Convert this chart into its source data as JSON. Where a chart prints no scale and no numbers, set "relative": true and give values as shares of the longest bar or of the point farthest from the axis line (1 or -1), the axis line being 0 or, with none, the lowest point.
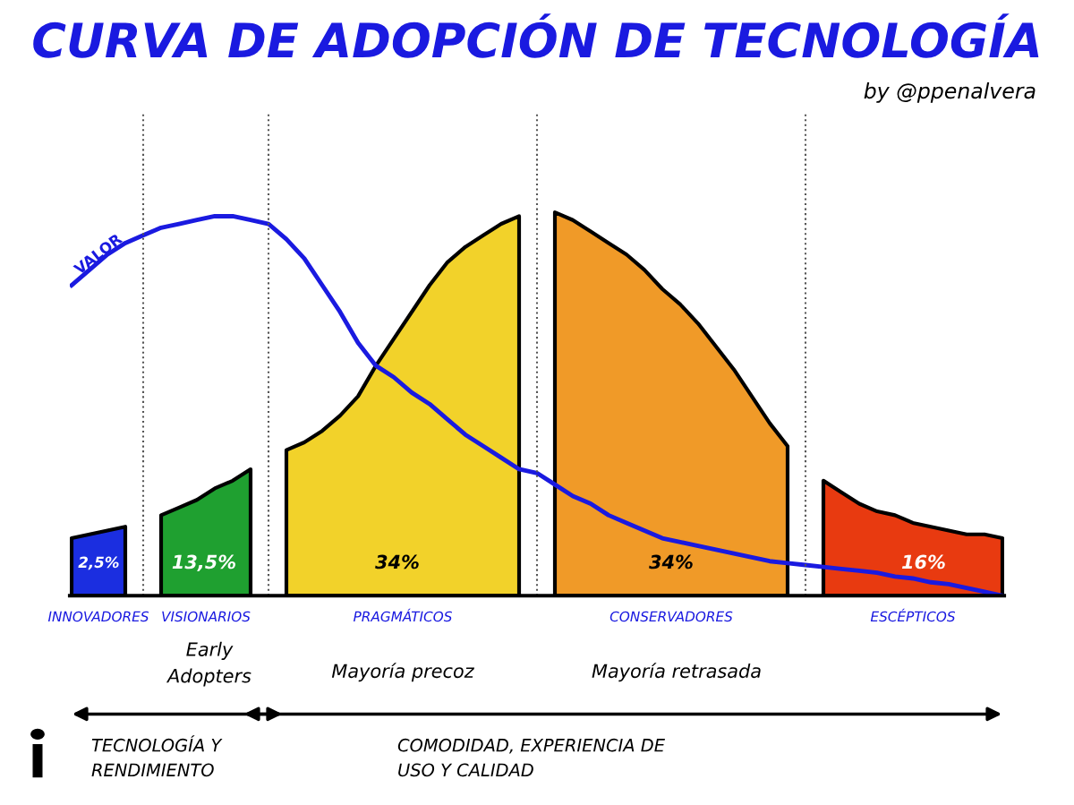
{
  "chart_data": {
    "type": "area",
    "title": "CURVA DE ADOPCIÓN DE TECNOLOGÍA",
    "subtitle": "by @ppenalvera",
    "relative": true,
    "grid": "x",
    "legend": false,
    "categories": [
      null,
      null,
      null,
      null,
      null,
      null,
      null,
      null,
      null,
      null,
      null,
      null,
      null,
      null,
      null,
      null,
      null,
      null,
      null,
      null,
      null,
      null,
      null,
      null,
      null,
      null,
      null,
      null,
      null,
      null,
      null,
      null,
      null,
      null,
      null,
      null,
      null,
      null,
      null,
      null,
      null,
      null,
      null,
      null,
      null,
      null,
      null,
      null,
      null,
      null,
      null,
      null,
      null
    ],
    "series": [
      {
        "name": "INNOVADORES",
        "color": "#1b2ee0",
        "values": [
          0.15,
          0.16,
          0.17,
          0.18,
          null,
          null,
          null,
          null,
          null,
          null,
          null,
          null,
          null,
          null,
          null,
          null,
          null,
          null,
          null,
          null,
          null,
          null,
          null,
          null,
          null,
          null,
          null,
          null,
          null,
          null,
          null,
          null,
          null,
          null,
          null,
          null,
          null,
          null,
          null,
          null,
          null,
          null,
          null,
          null,
          null,
          null,
          null,
          null,
          null,
          null,
          null,
          null,
          null
        ]
      },
      {
        "name": "VISIONARIOS",
        "color": "#1fa030",
        "values": [
          null,
          null,
          null,
          null,
          null,
          0.21,
          0.23,
          0.25,
          0.28,
          0.3,
          0.33,
          null,
          null,
          null,
          null,
          null,
          null,
          null,
          null,
          null,
          null,
          null,
          null,
          null,
          null,
          null,
          null,
          null,
          null,
          null,
          null,
          null,
          null,
          null,
          null,
          null,
          null,
          null,
          null,
          null,
          null,
          null,
          null,
          null,
          null,
          null,
          null,
          null,
          null,
          null,
          null,
          null,
          null
        ]
      },
      {
        "name": "PRAGMÁTICOS",
        "color": "#f2d22a",
        "values": [
          null,
          null,
          null,
          null,
          null,
          null,
          null,
          null,
          null,
          null,
          null,
          null,
          0.38,
          0.4,
          0.43,
          0.47,
          0.52,
          0.6,
          0.67,
          0.74,
          0.81,
          0.87,
          0.91,
          0.94,
          0.97,
          0.99,
          null,
          null,
          null,
          null,
          null,
          null,
          null,
          null,
          null,
          null,
          null,
          null,
          null,
          null,
          null,
          null,
          null,
          null,
          null,
          null,
          null,
          null,
          null,
          null,
          null,
          null,
          null
        ]
      },
      {
        "name": "CONSERVADORES",
        "color": "#f09a28",
        "values": [
          null,
          null,
          null,
          null,
          null,
          null,
          null,
          null,
          null,
          null,
          null,
          null,
          null,
          null,
          null,
          null,
          null,
          null,
          null,
          null,
          null,
          null,
          null,
          null,
          null,
          null,
          null,
          1.0,
          0.98,
          0.95,
          0.92,
          0.89,
          0.85,
          0.8,
          0.76,
          0.71,
          0.65,
          0.59,
          0.52,
          0.45,
          0.39,
          null,
          null,
          null,
          null,
          null,
          null,
          null,
          null,
          null,
          null,
          null,
          null
        ]
      },
      {
        "name": "ESCÉPTICOS",
        "color": "#e83a10",
        "values": [
          null,
          null,
          null,
          null,
          null,
          null,
          null,
          null,
          null,
          null,
          null,
          null,
          null,
          null,
          null,
          null,
          null,
          null,
          null,
          null,
          null,
          null,
          null,
          null,
          null,
          null,
          null,
          null,
          null,
          null,
          null,
          null,
          null,
          null,
          null,
          null,
          null,
          null,
          null,
          null,
          null,
          null,
          0.3,
          0.27,
          0.24,
          0.22,
          0.21,
          0.19,
          0.18,
          0.17,
          0.16,
          0.16,
          0.15
        ]
      },
      {
        "name": "VALOR",
        "type": "line",
        "color": "#1a1ae0",
        "values": [
          0.81,
          0.85,
          0.89,
          0.92,
          0.94,
          0.96,
          0.97,
          0.98,
          0.99,
          0.99,
          0.98,
          0.97,
          0.93,
          0.88,
          0.81,
          0.74,
          0.66,
          0.6,
          0.57,
          0.53,
          0.5,
          0.46,
          0.42,
          0.39,
          0.36,
          0.33,
          0.32,
          0.29,
          0.26,
          0.24,
          0.21,
          0.19,
          0.17,
          0.15,
          0.14,
          0.13,
          0.12,
          0.11,
          0.1,
          0.09,
          0.085,
          0.08,
          0.075,
          0.07,
          0.065,
          0.06,
          0.05,
          0.045,
          0.035,
          0.03,
          0.02,
          0.01,
          0.0
        ]
      }
    ],
    "annotations": [
      "2,5%",
      "13,5%",
      "34%",
      "34%",
      "16%",
      "Early Adopters",
      "Mayoría precoz",
      "Mayoría retrasada",
      "TECNOLOGÍA Y RENDIMIENTO",
      "COMODIDAD, EXPERIENCIA DE USO Y CALIDAD"
    ]
  }
}
